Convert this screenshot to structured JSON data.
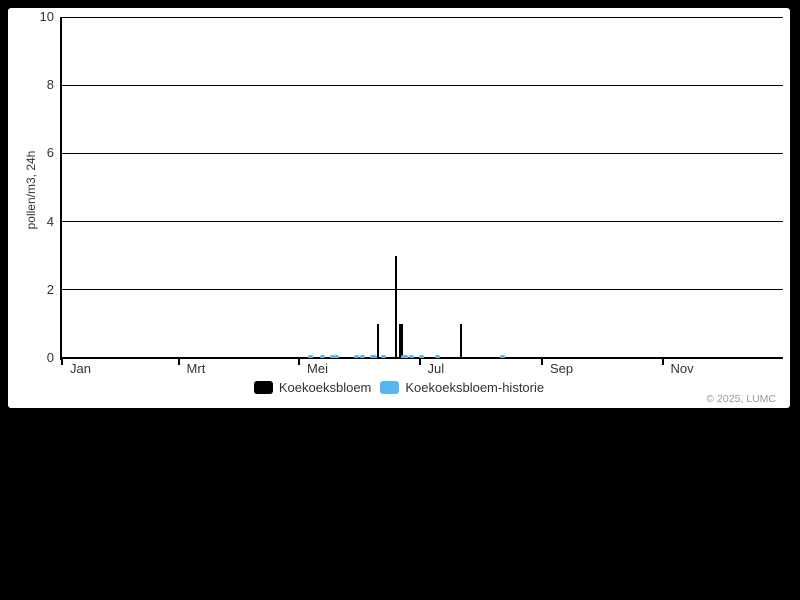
{
  "page": {
    "background_color": "#000000",
    "panel_background_color": "#ffffff"
  },
  "chart_data": {
    "type": "bar",
    "title": "",
    "xlabel": "",
    "ylabel": "pollen/m3, 24h",
    "ylim": [
      0,
      10
    ],
    "yticks": [
      0,
      2,
      4,
      6,
      8,
      10
    ],
    "days_in_year": 365,
    "grid": "horizontal",
    "legend_position": "bottom-center",
    "x_axis_months": [
      {
        "label": "Jan",
        "day": 0
      },
      {
        "label": "Mrt",
        "day": 59
      },
      {
        "label": "Mei",
        "day": 120
      },
      {
        "label": "Jul",
        "day": 181
      },
      {
        "label": "Sep",
        "day": 243
      },
      {
        "label": "Nov",
        "day": 304
      }
    ],
    "series": [
      {
        "name": "Koekoeksbloem",
        "color": "#000000",
        "style": "spike",
        "points": [
          {
            "day": 160,
            "value": 1
          },
          {
            "day": 169,
            "value": 3
          },
          {
            "day": 171,
            "value": 1
          },
          {
            "day": 172,
            "value": 1
          },
          {
            "day": 202,
            "value": 1
          }
        ]
      },
      {
        "name": "Koekoeksbloem-historie",
        "color": "#57b6f2",
        "style": "dot",
        "points": [
          {
            "day": 126,
            "value": 0.1
          },
          {
            "day": 132,
            "value": 0.1
          },
          {
            "day": 137,
            "value": 0.1
          },
          {
            "day": 139,
            "value": 0.1
          },
          {
            "day": 149,
            "value": 0.1
          },
          {
            "day": 152,
            "value": 0.1
          },
          {
            "day": 157,
            "value": 0.1
          },
          {
            "day": 158,
            "value": 0.1
          },
          {
            "day": 163,
            "value": 0.1
          },
          {
            "day": 173,
            "value": 0.1
          },
          {
            "day": 174,
            "value": 0.1
          },
          {
            "day": 177,
            "value": 0.1
          },
          {
            "day": 182,
            "value": 0.1
          },
          {
            "day": 190,
            "value": 0.1
          },
          {
            "day": 223,
            "value": 0.1
          }
        ]
      }
    ]
  },
  "footer": {
    "copyright": "© 2025, LUMC"
  }
}
